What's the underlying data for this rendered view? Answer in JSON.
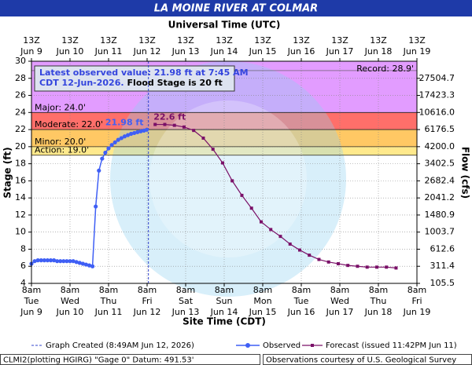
{
  "chart_data": {
    "type": "hydrograph",
    "title": "LA MOINE RIVER AT COLMAR",
    "x2label": "Universal Time (UTC)",
    "xlabel": "Site Time (CDT)",
    "ylabel": "Stage (ft)",
    "y2label": "Flow (cfs)",
    "xlim": [
      "2026-06-09T08:00",
      "2026-06-19T08:00"
    ],
    "ylim": [
      4,
      30
    ],
    "yticks": [
      4,
      6,
      8,
      10,
      12,
      14,
      16,
      18,
      20,
      22,
      24,
      26,
      28,
      30
    ],
    "y2ticks": [
      105.5,
      311.4,
      612.6,
      1003.7,
      1480.9,
      2041.2,
      2682.4,
      3402.5,
      {
        "value": 4200,
        "label": "4200.0"
      },
      6176.5,
      {
        "value": 10616,
        "label": "10616.0"
      },
      17423.3,
      27504.7
    ],
    "grid": true,
    "xticks": [
      {
        "value": "2026-06-09T08:00",
        "label": [
          "8am",
          "Tue",
          "Jun 9"
        ]
      },
      {
        "value": "2026-06-10T08:00",
        "label": [
          "8am",
          "Wed",
          "Jun 10"
        ]
      },
      {
        "value": "2026-06-11T08:00",
        "label": [
          "8am",
          "Thu",
          "Jun 11"
        ]
      },
      {
        "value": "2026-06-12T08:00",
        "label": [
          "8am",
          "Fri",
          "Jun 12"
        ]
      },
      {
        "value": "2026-06-13T08:00",
        "label": [
          "8am",
          "Sat",
          "Jun 13"
        ]
      },
      {
        "value": "2026-06-14T08:00",
        "label": [
          "8am",
          "Sun",
          "Jun 14"
        ]
      },
      {
        "value": "2026-06-15T08:00",
        "label": [
          "8am",
          "Mon",
          "Jun 15"
        ]
      },
      {
        "value": "2026-06-16T08:00",
        "label": [
          "8am",
          "Tue",
          "Jun 16"
        ]
      },
      {
        "value": "2026-06-17T08:00",
        "label": [
          "8am",
          "Wed",
          "Jun 17"
        ]
      },
      {
        "value": "2026-06-18T08:00",
        "label": [
          "8am",
          "Thu",
          "Jun 18"
        ]
      },
      {
        "value": "2026-06-19T08:00",
        "label": [
          "8am",
          "Fri",
          "Jun 19"
        ]
      }
    ],
    "x2ticks": [
      {
        "value": "2026-06-09T08:00",
        "label": [
          "13Z",
          "Jun 9"
        ]
      },
      {
        "value": "2026-06-10T08:00",
        "label": [
          "13Z",
          "Jun 10"
        ]
      },
      {
        "value": "2026-06-11T08:00",
        "label": [
          "13Z",
          "Jun 11"
        ]
      },
      {
        "value": "2026-06-12T08:00",
        "label": [
          "13Z",
          "Jun 12"
        ]
      },
      {
        "value": "2026-06-13T08:00",
        "label": [
          "13Z",
          "Jun 13"
        ]
      },
      {
        "value": "2026-06-14T08:00",
        "label": [
          "13Z",
          "Jun 14"
        ]
      },
      {
        "value": "2026-06-15T08:00",
        "label": [
          "13Z",
          "Jun 15"
        ]
      },
      {
        "value": "2026-06-16T08:00",
        "label": [
          "13Z",
          "Jun 16"
        ]
      },
      {
        "value": "2026-06-17T08:00",
        "label": [
          "13Z",
          "Jun 17"
        ]
      },
      {
        "value": "2026-06-18T08:00",
        "label": [
          "13Z",
          "Jun 18"
        ]
      },
      {
        "value": "2026-06-19T08:00",
        "label": [
          "13Z",
          "Jun 19"
        ]
      }
    ],
    "flood_categories": [
      {
        "label": "Action: 19.0'",
        "value": 19,
        "color": "#ffe98c"
      },
      {
        "label": "Minor: 20.0'",
        "value": 20,
        "color": "#ffc864"
      },
      {
        "label": "Moderate: 22.0'",
        "value": 22,
        "color": "#ff6f6a"
      },
      {
        "label": "Major: 24.0'",
        "value": 24,
        "color": "#e29cff"
      }
    ],
    "record": {
      "label": "Record: 28.9'",
      "value": 28.9
    },
    "info": {
      "line1": "Latest observed value: 21.98 ft at 7:45 AM",
      "line2": "CDT 12-Jun-2026.",
      "flood_stage": "Flood Stage is 20 ft"
    },
    "created": {
      "label": "Graph Created (8:49AM Jun 12, 2026)",
      "x": "2026-06-12T08:49",
      "color": "#3344cc"
    },
    "series": [
      {
        "name": "Observed",
        "color": "#3f5ff5",
        "x": [
          "2026-06-09T08:00",
          "2026-06-09T10:00",
          "2026-06-09T12:00",
          "2026-06-09T14:00",
          "2026-06-09T16:00",
          "2026-06-09T18:00",
          "2026-06-09T20:00",
          "2026-06-09T22:00",
          "2026-06-10T00:00",
          "2026-06-10T02:00",
          "2026-06-10T04:00",
          "2026-06-10T06:00",
          "2026-06-10T08:00",
          "2026-06-10T10:00",
          "2026-06-10T12:00",
          "2026-06-10T14:00",
          "2026-06-10T16:00",
          "2026-06-10T18:00",
          "2026-06-10T20:00",
          "2026-06-10T22:00",
          "2026-06-11T00:00",
          "2026-06-11T02:00",
          "2026-06-11T04:00",
          "2026-06-11T06:00",
          "2026-06-11T08:00",
          "2026-06-11T10:00",
          "2026-06-11T12:00",
          "2026-06-11T14:00",
          "2026-06-11T16:00",
          "2026-06-11T18:00",
          "2026-06-11T20:00",
          "2026-06-11T22:00",
          "2026-06-12T00:00",
          "2026-06-12T02:00",
          "2026-06-12T04:00",
          "2026-06-12T06:00",
          "2026-06-12T07:45"
        ],
        "values": [
          6.3,
          6.6,
          6.7,
          6.7,
          6.7,
          6.7,
          6.7,
          6.7,
          6.6,
          6.6,
          6.6,
          6.6,
          6.6,
          6.6,
          6.5,
          6.4,
          6.3,
          6.2,
          6.1,
          6.0,
          13.0,
          17.2,
          18.6,
          19.3,
          19.8,
          20.2,
          20.5,
          20.8,
          21.0,
          21.2,
          21.35,
          21.5,
          21.6,
          21.7,
          21.8,
          21.88,
          21.98
        ]
      },
      {
        "name": "Forecast (issued 11:42PM Jun 11)",
        "color": "#7a1068",
        "x": [
          "2026-06-12T13:00",
          "2026-06-12T19:00",
          "2026-06-13T01:00",
          "2026-06-13T07:00",
          "2026-06-13T13:00",
          "2026-06-13T19:00",
          "2026-06-14T01:00",
          "2026-06-14T07:00",
          "2026-06-14T13:00",
          "2026-06-14T19:00",
          "2026-06-15T01:00",
          "2026-06-15T07:00",
          "2026-06-15T13:00",
          "2026-06-15T19:00",
          "2026-06-16T01:00",
          "2026-06-16T07:00",
          "2026-06-16T13:00",
          "2026-06-16T19:00",
          "2026-06-17T01:00",
          "2026-06-17T07:00",
          "2026-06-17T13:00",
          "2026-06-17T19:00",
          "2026-06-18T01:00",
          "2026-06-18T07:00",
          "2026-06-18T13:00",
          "2026-06-18T19:00"
        ],
        "values": [
          22.6,
          22.6,
          22.5,
          22.3,
          21.9,
          21.0,
          19.7,
          18.1,
          16.0,
          14.3,
          12.8,
          11.2,
          10.3,
          9.5,
          8.6,
          7.9,
          7.3,
          6.8,
          6.5,
          6.3,
          6.1,
          6.0,
          5.9,
          5.9,
          5.9,
          5.8
        ]
      }
    ],
    "annotations": [
      {
        "text": "21.98 ft",
        "x": "2026-06-12T07:45",
        "y": 21.98,
        "color": "#3f5ff5",
        "anchor": "end"
      },
      {
        "text": "22.6 ft",
        "x": "2026-06-12T13:00",
        "y": 22.6,
        "color": "#7a1068",
        "anchor": "start"
      }
    ],
    "footer_left": "CLMI2(plotting HGIRG) \"Gage 0\" Datum: 491.53'",
    "footer_right": "Observations courtesy of U.S. Geological Survey"
  }
}
